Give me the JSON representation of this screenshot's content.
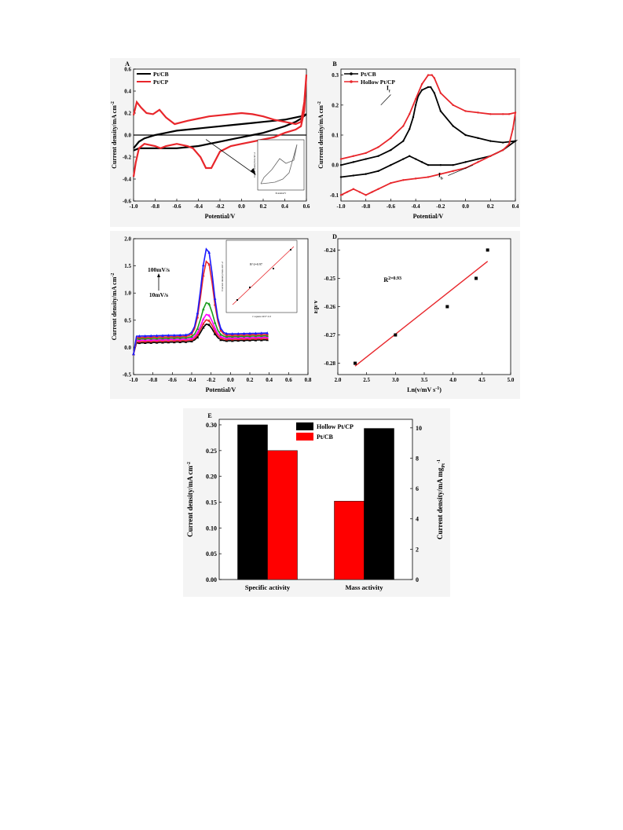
{
  "charts": {
    "A": {
      "panel_label": "A",
      "type": "line",
      "xlabel": "Potential/V",
      "ylabel": "Current density/mA cm^-2",
      "xlim": [
        -1.0,
        0.6
      ],
      "ylim": [
        -0.6,
        0.6
      ],
      "xticks": [
        "-1.0",
        "-0.8",
        "-0.6",
        "-0.4",
        "-0.2",
        "0.0",
        "0.2",
        "0.4",
        "0.6"
      ],
      "yticks": [
        "-0.6",
        "-0.4",
        "-0.2",
        "0.0",
        "0.2",
        "0.4",
        "0.6"
      ],
      "legend": [
        "Pt/CB",
        "Pt/CP"
      ],
      "colors": {
        "Pt/CB": "#000000",
        "Pt/CP": "#e8262b"
      },
      "series": [
        {
          "name": "Pt/CB",
          "x": [
            -1.0,
            -0.95,
            -0.9,
            -0.8,
            -0.7,
            -0.6,
            -0.5,
            -0.4,
            -0.3,
            -0.2,
            -0.1,
            0.0,
            0.1,
            0.2,
            0.3,
            0.4,
            0.5,
            0.55,
            0.6,
            0.55,
            0.5,
            0.4,
            0.3,
            0.2,
            0.1,
            0.0,
            -0.1,
            -0.2,
            -0.3,
            -0.4,
            -0.5,
            -0.6,
            -0.7,
            -0.8,
            -0.9,
            -0.95,
            -1.0
          ],
          "y": [
            -0.12,
            -0.06,
            -0.03,
            0.0,
            0.02,
            0.04,
            0.05,
            0.06,
            0.07,
            0.08,
            0.09,
            0.1,
            0.11,
            0.12,
            0.13,
            0.14,
            0.16,
            0.17,
            0.19,
            0.15,
            0.12,
            0.08,
            0.05,
            0.02,
            0.0,
            -0.02,
            -0.04,
            -0.06,
            -0.08,
            -0.1,
            -0.11,
            -0.12,
            -0.12,
            -0.12,
            -0.12,
            -0.12,
            -0.14
          ]
        },
        {
          "name": "Pt/CP",
          "x": [
            -1.0,
            -0.97,
            -0.93,
            -0.88,
            -0.82,
            -0.76,
            -0.7,
            -0.62,
            -0.5,
            -0.4,
            -0.3,
            -0.2,
            -0.1,
            0.0,
            0.1,
            0.2,
            0.3,
            0.4,
            0.5,
            0.55,
            0.58,
            0.6,
            0.58,
            0.55,
            0.5,
            0.4,
            0.3,
            0.2,
            0.1,
            0.0,
            -0.1,
            -0.2,
            -0.28,
            -0.33,
            -0.38,
            -0.45,
            -0.5,
            -0.6,
            -0.7,
            -0.75,
            -0.8,
            -0.9,
            -0.95,
            -0.98,
            -1.0
          ],
          "y": [
            0.18,
            0.3,
            0.25,
            0.2,
            0.19,
            0.23,
            0.16,
            0.1,
            0.13,
            0.15,
            0.17,
            0.18,
            0.19,
            0.2,
            0.19,
            0.17,
            0.14,
            0.12,
            0.1,
            0.12,
            0.3,
            0.55,
            0.22,
            0.08,
            0.05,
            0.02,
            -0.02,
            -0.04,
            -0.06,
            -0.08,
            -0.1,
            -0.15,
            -0.3,
            -0.3,
            -0.2,
            -0.12,
            -0.1,
            -0.08,
            -0.1,
            -0.12,
            -0.1,
            -0.08,
            -0.12,
            -0.25,
            -0.38
          ]
        }
      ],
      "zero_line": true,
      "inset": {
        "xlabel": "Potential/V",
        "ylabel": "Current density/mA cm^-2"
      }
    },
    "B": {
      "panel_label": "B",
      "type": "line",
      "xlabel": "Potential/V",
      "ylabel": "Current density/mA cm^-2",
      "xlim": [
        -1.0,
        0.4
      ],
      "ylim": [
        -0.12,
        0.32
      ],
      "xticks": [
        "-1.0",
        "-0.8",
        "-0.6",
        "-0.4",
        "-0.2",
        "0.0",
        "0.2",
        "0.4"
      ],
      "yticks": [
        "-0.1",
        "0.0",
        "0.1",
        "0.2",
        "0.3"
      ],
      "legend": [
        "Pt/CB",
        "Hollow Pt/CP"
      ],
      "colors": {
        "Pt/CB": "#000000",
        "Hollow Pt/CP": "#e8262b"
      },
      "annotations": [
        "If",
        "Ib"
      ],
      "series": [
        {
          "name": "Pt/CB",
          "x": [
            -1.0,
            -0.9,
            -0.8,
            -0.7,
            -0.6,
            -0.5,
            -0.45,
            -0.42,
            -0.4,
            -0.38,
            -0.35,
            -0.3,
            -0.28,
            -0.25,
            -0.2,
            -0.1,
            0.0,
            0.1,
            0.2,
            0.3,
            0.4,
            0.3,
            0.2,
            0.1,
            0.0,
            -0.1,
            -0.2,
            -0.3,
            -0.35,
            -0.4,
            -0.45,
            -0.5,
            -0.6,
            -0.7,
            -0.8,
            -0.9,
            -1.0
          ],
          "y": [
            0.0,
            0.01,
            0.02,
            0.03,
            0.05,
            0.08,
            0.12,
            0.16,
            0.2,
            0.23,
            0.25,
            0.26,
            0.26,
            0.24,
            0.18,
            0.13,
            0.1,
            0.09,
            0.08,
            0.075,
            0.08,
            0.05,
            0.03,
            0.02,
            0.01,
            0.0,
            0.0,
            0.0,
            0.01,
            0.02,
            0.03,
            0.02,
            0.0,
            -0.02,
            -0.03,
            -0.035,
            -0.04
          ]
        },
        {
          "name": "Hollow Pt/CP",
          "x": [
            -1.0,
            -0.9,
            -0.8,
            -0.7,
            -0.6,
            -0.5,
            -0.45,
            -0.4,
            -0.35,
            -0.3,
            -0.27,
            -0.25,
            -0.2,
            -0.1,
            0.0,
            0.1,
            0.2,
            0.3,
            0.35,
            0.4,
            0.38,
            0.35,
            0.3,
            0.2,
            0.1,
            0.0,
            -0.1,
            -0.2,
            -0.3,
            -0.4,
            -0.5,
            -0.6,
            -0.7,
            -0.75,
            -0.8,
            -0.85,
            -0.9,
            -0.95,
            -1.0
          ],
          "y": [
            0.02,
            0.03,
            0.04,
            0.06,
            0.09,
            0.13,
            0.17,
            0.22,
            0.27,
            0.3,
            0.3,
            0.29,
            0.24,
            0.2,
            0.18,
            0.175,
            0.17,
            0.17,
            0.17,
            0.175,
            0.12,
            0.07,
            0.05,
            0.03,
            0.01,
            -0.01,
            -0.02,
            -0.03,
            -0.04,
            -0.045,
            -0.05,
            -0.06,
            -0.08,
            -0.09,
            -0.1,
            -0.09,
            -0.08,
            -0.09,
            -0.1
          ]
        }
      ]
    },
    "C": {
      "type": "line",
      "xlabel": "Potential/V",
      "ylabel": "Current density/mA cm^-2",
      "xlim": [
        -1.0,
        0.8
      ],
      "ylim": [
        -0.5,
        2.0
      ],
      "xticks": [
        "-1.0",
        "-0.8",
        "-0.6",
        "-0.4",
        "-0.2",
        "0.0",
        "0.2",
        "0.4",
        "0.6",
        "0.8"
      ],
      "yticks": [
        "-0.5",
        "0.0",
        "0.5",
        "1.0",
        "1.5",
        "2.0"
      ],
      "annotations": [
        "100mV/s",
        "10mV/s"
      ],
      "peaks": [
        0.4,
        0.48,
        0.58,
        0.8,
        1.57,
        1.8
      ],
      "peak_colors": [
        "#000000",
        "#e8262b",
        "#ff00ff",
        "#1a9c1a",
        "#e8262b",
        "#1a1aff"
      ],
      "inset": {
        "xlabel": "v square mV^1/2",
        "ylabel": "Current density/mA cm^-2",
        "annotation": "R^2=0.97"
      }
    },
    "D": {
      "panel_label": "D",
      "type": "scatter",
      "xlabel": "Ln(v/mV s^-1)",
      "ylabel": "Ep/V",
      "xlim": [
        2.0,
        5.0
      ],
      "ylim": [
        -0.284,
        -0.236
      ],
      "xticks": [
        "2.0",
        "2.5",
        "3.0",
        "3.5",
        "4.0",
        "4.5",
        "5.0"
      ],
      "yticks": [
        "-0.28",
        "-0.27",
        "-0.26",
        "-0.25",
        "-0.24"
      ],
      "x": [
        2.3,
        3.0,
        3.9,
        4.4,
        4.6
      ],
      "y": [
        -0.28,
        -0.27,
        -0.26,
        -0.25,
        -0.24
      ],
      "fit": {
        "x": [
          2.3,
          4.6
        ],
        "y": [
          -0.281,
          -0.244
        ]
      },
      "annotation": "R^2=0.93"
    },
    "E": {
      "panel_label": "E",
      "type": "bar",
      "categories": [
        "Specific activity",
        "Mass activity"
      ],
      "ylabel_left": "Current density/mA cm^-2",
      "ylabel_right": "Current density/mA mg_Pt^-1",
      "ylim_left": [
        0,
        0.3
      ],
      "ylim_right": [
        0,
        10.2
      ],
      "yticks_left": [
        "0.00",
        "0.05",
        "0.10",
        "0.15",
        "0.20",
        "0.25",
        "0.30"
      ],
      "yticks_right": [
        "0",
        "2",
        "4",
        "6",
        "8",
        "10"
      ],
      "legend": [
        "Hollow Pt/CP",
        "Pt/CB"
      ],
      "colors": {
        "Hollow Pt/CP": "#000000",
        "Pt/CB": "#ff0000"
      },
      "series": [
        {
          "name": "Hollow Pt/CP",
          "values": [
            0.3,
            0.293
          ]
        },
        {
          "name": "Pt/CB",
          "values": [
            0.25,
            0.152
          ]
        }
      ]
    }
  }
}
